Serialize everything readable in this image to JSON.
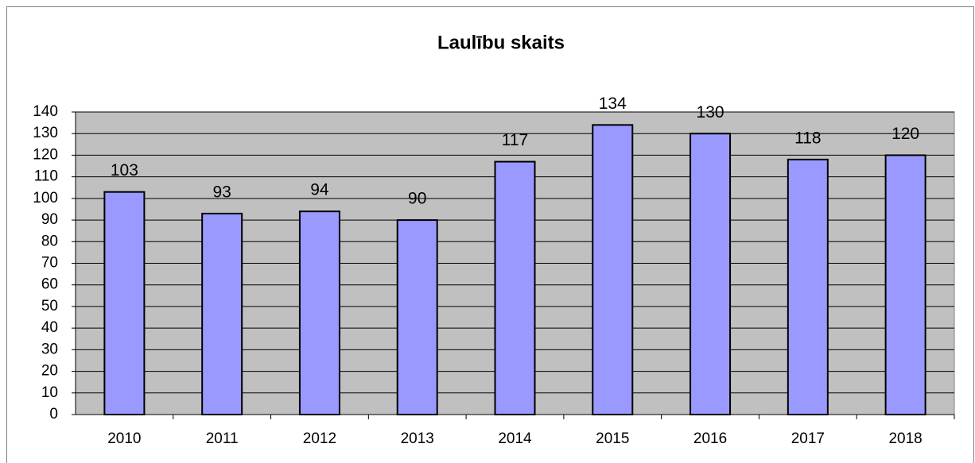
{
  "chart_data": {
    "type": "bar",
    "title": "Laulību skaits",
    "categories": [
      "2010",
      "2011",
      "2012",
      "2013",
      "2014",
      "2015",
      "2016",
      "2017",
      "2018"
    ],
    "values": [
      103,
      93,
      94,
      90,
      117,
      134,
      130,
      118,
      120
    ],
    "color": "#9999ff",
    "plot_background": "#c0c0c0",
    "ylim": [
      0,
      140
    ],
    "yticks": [
      0,
      10,
      20,
      30,
      40,
      50,
      60,
      70,
      80,
      90,
      100,
      110,
      120,
      130,
      140
    ],
    "grid": true
  }
}
